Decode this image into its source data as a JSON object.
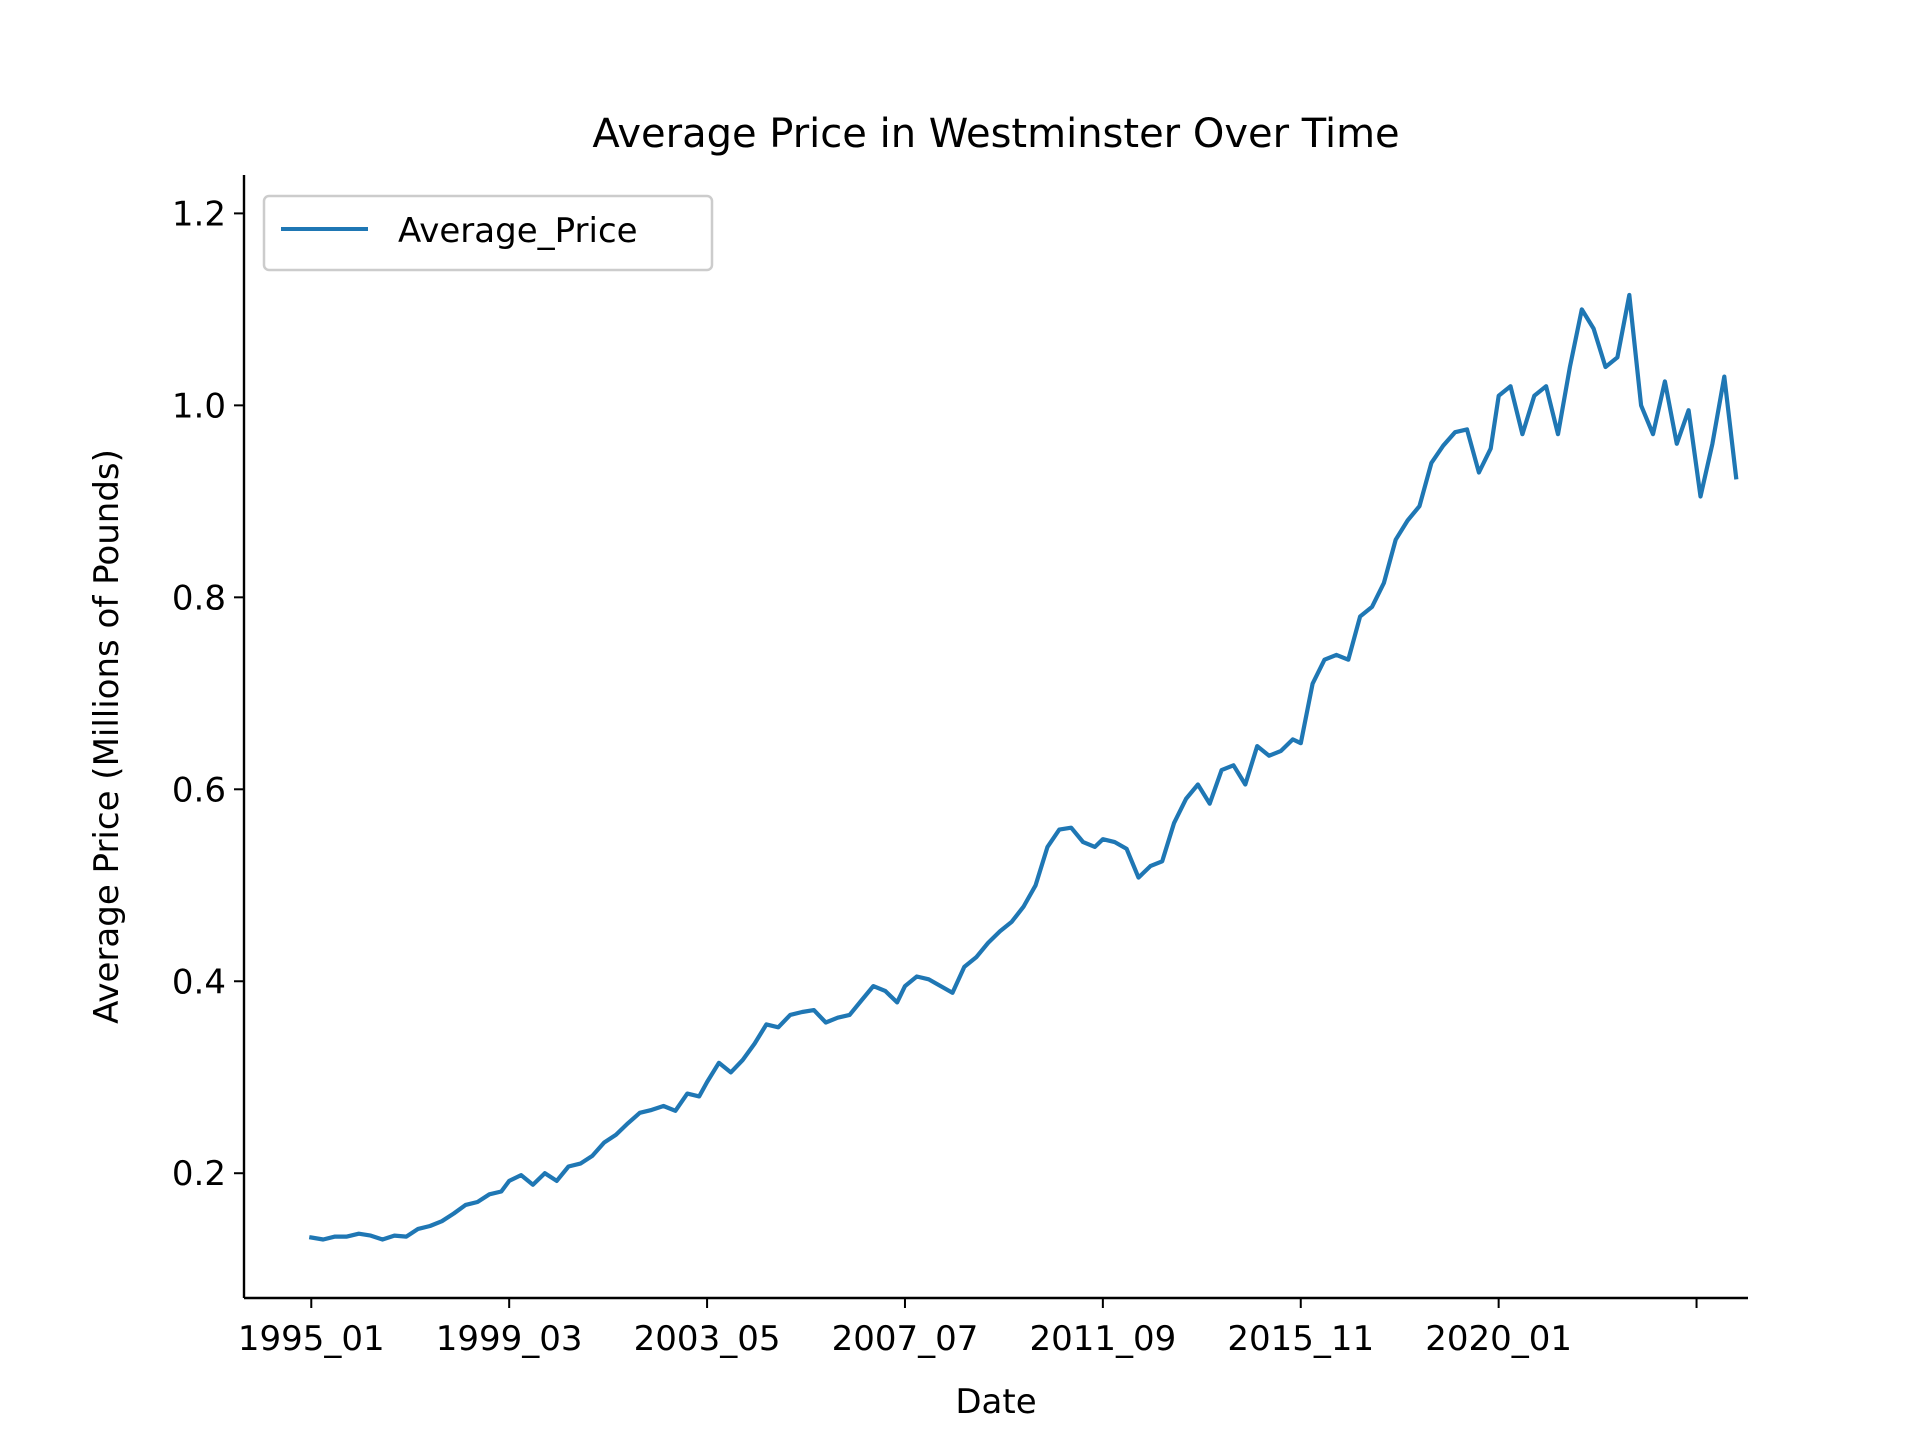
{
  "chart_data": {
    "type": "line",
    "title": "Average Price in Westminster Over Time",
    "xlabel": "Date",
    "ylabel": "Average Price (Millions of Pounds)",
    "x_tick_labels": [
      "1995_01",
      "1999_03",
      "2003_05",
      "2007_07",
      "2011_09",
      "2015_11",
      "2020_01",
      ""
    ],
    "y_ticks": [
      0.2,
      0.4,
      0.6,
      0.8,
      1.0,
      1.2
    ],
    "y_tick_labels": [
      "0.2",
      "0.4",
      "0.6",
      "0.8",
      "1.0",
      "1.2"
    ],
    "ylim": [
      0.07,
      1.24
    ],
    "xlim": [
      "1993_08",
      "2025_04"
    ],
    "grid": false,
    "legend_position": "upper-left",
    "series": [
      {
        "name": "Average_Price",
        "color": "#1f77b4",
        "points": [
          [
            "1995_01",
            0.133
          ],
          [
            "1995_04",
            0.131
          ],
          [
            "1995_07",
            0.134
          ],
          [
            "1995_10",
            0.134
          ],
          [
            "1996_01",
            0.137
          ],
          [
            "1996_04",
            0.135
          ],
          [
            "1996_07",
            0.131
          ],
          [
            "1996_10",
            0.135
          ],
          [
            "1997_01",
            0.134
          ],
          [
            "1997_04",
            0.142
          ],
          [
            "1997_07",
            0.145
          ],
          [
            "1997_10",
            0.15
          ],
          [
            "1998_01",
            0.158
          ],
          [
            "1998_04",
            0.167
          ],
          [
            "1998_07",
            0.17
          ],
          [
            "1998_10",
            0.178
          ],
          [
            "1999_01",
            0.181
          ],
          [
            "1999_03",
            0.192
          ],
          [
            "1999_06",
            0.198
          ],
          [
            "1999_09",
            0.188
          ],
          [
            "1999_12",
            0.2
          ],
          [
            "2000_03",
            0.192
          ],
          [
            "2000_06",
            0.207
          ],
          [
            "2000_09",
            0.21
          ],
          [
            "2000_12",
            0.218
          ],
          [
            "2001_03",
            0.232
          ],
          [
            "2001_06",
            0.24
          ],
          [
            "2001_09",
            0.252
          ],
          [
            "2001_12",
            0.263
          ],
          [
            "2002_03",
            0.266
          ],
          [
            "2002_06",
            0.27
          ],
          [
            "2002_09",
            0.265
          ],
          [
            "2002_12",
            0.283
          ],
          [
            "2003_03",
            0.28
          ],
          [
            "2003_05",
            0.295
          ],
          [
            "2003_08",
            0.315
          ],
          [
            "2003_11",
            0.305
          ],
          [
            "2004_02",
            0.318
          ],
          [
            "2004_05",
            0.335
          ],
          [
            "2004_08",
            0.355
          ],
          [
            "2004_11",
            0.352
          ],
          [
            "2005_02",
            0.365
          ],
          [
            "2005_05",
            0.368
          ],
          [
            "2005_08",
            0.37
          ],
          [
            "2005_11",
            0.357
          ],
          [
            "2006_02",
            0.362
          ],
          [
            "2006_05",
            0.365
          ],
          [
            "2006_08",
            0.38
          ],
          [
            "2006_11",
            0.395
          ],
          [
            "2007_02",
            0.39
          ],
          [
            "2007_05",
            0.378
          ],
          [
            "2007_07",
            0.395
          ],
          [
            "2007_10",
            0.405
          ],
          [
            "2008_01",
            0.402
          ],
          [
            "2008_04",
            0.395
          ],
          [
            "2008_07",
            0.388
          ],
          [
            "2008_10",
            0.415
          ],
          [
            "2009_01",
            0.425
          ],
          [
            "2009_04",
            0.44
          ],
          [
            "2009_07",
            0.452
          ],
          [
            "2009_10",
            0.462
          ],
          [
            "2010_01",
            0.478
          ],
          [
            "2010_04",
            0.5
          ],
          [
            "2010_07",
            0.54
          ],
          [
            "2010_10",
            0.558
          ],
          [
            "2011_01",
            0.56
          ],
          [
            "2011_04",
            0.545
          ],
          [
            "2011_07",
            0.54
          ],
          [
            "2011_09",
            0.548
          ],
          [
            "2011_12",
            0.545
          ],
          [
            "2012_03",
            0.538
          ],
          [
            "2012_06",
            0.508
          ],
          [
            "2012_09",
            0.52
          ],
          [
            "2012_12",
            0.525
          ],
          [
            "2013_03",
            0.565
          ],
          [
            "2013_06",
            0.59
          ],
          [
            "2013_09",
            0.605
          ],
          [
            "2013_12",
            0.585
          ],
          [
            "2014_03",
            0.62
          ],
          [
            "2014_06",
            0.625
          ],
          [
            "2014_09",
            0.605
          ],
          [
            "2014_12",
            0.645
          ],
          [
            "2015_03",
            0.635
          ],
          [
            "2015_06",
            0.64
          ],
          [
            "2015_09",
            0.652
          ],
          [
            "2015_11",
            0.648
          ],
          [
            "2016_02",
            0.71
          ],
          [
            "2016_05",
            0.735
          ],
          [
            "2016_08",
            0.74
          ],
          [
            "2016_11",
            0.735
          ],
          [
            "2017_02",
            0.78
          ],
          [
            "2017_05",
            0.79
          ],
          [
            "2017_08",
            0.815
          ],
          [
            "2017_11",
            0.86
          ],
          [
            "2018_02",
            0.88
          ],
          [
            "2018_05",
            0.895
          ],
          [
            "2018_08",
            0.94
          ],
          [
            "2018_11",
            0.958
          ],
          [
            "2019_02",
            0.972
          ],
          [
            "2019_05",
            0.975
          ],
          [
            "2019_08",
            0.93
          ],
          [
            "2019_11",
            0.955
          ],
          [
            "2020_01",
            1.01
          ],
          [
            "2020_04",
            1.02
          ],
          [
            "2020_07",
            0.97
          ],
          [
            "2020_10",
            1.01
          ],
          [
            "2021_01",
            1.02
          ],
          [
            "2021_04",
            0.97
          ],
          [
            "2021_07",
            1.04
          ],
          [
            "2021_10",
            1.1
          ],
          [
            "2022_01",
            1.08
          ],
          [
            "2022_04",
            1.04
          ],
          [
            "2022_07",
            1.05
          ],
          [
            "2022_10",
            1.115
          ],
          [
            "2023_01",
            1.0
          ],
          [
            "2023_04",
            0.97
          ],
          [
            "2023_07",
            1.025
          ],
          [
            "2023_10",
            0.96
          ],
          [
            "2024_01",
            0.995
          ],
          [
            "2024_04",
            0.905
          ],
          [
            "2024_07",
            0.96
          ],
          [
            "2024_10",
            1.03
          ],
          [
            "2025_01",
            0.925
          ]
        ]
      }
    ]
  }
}
